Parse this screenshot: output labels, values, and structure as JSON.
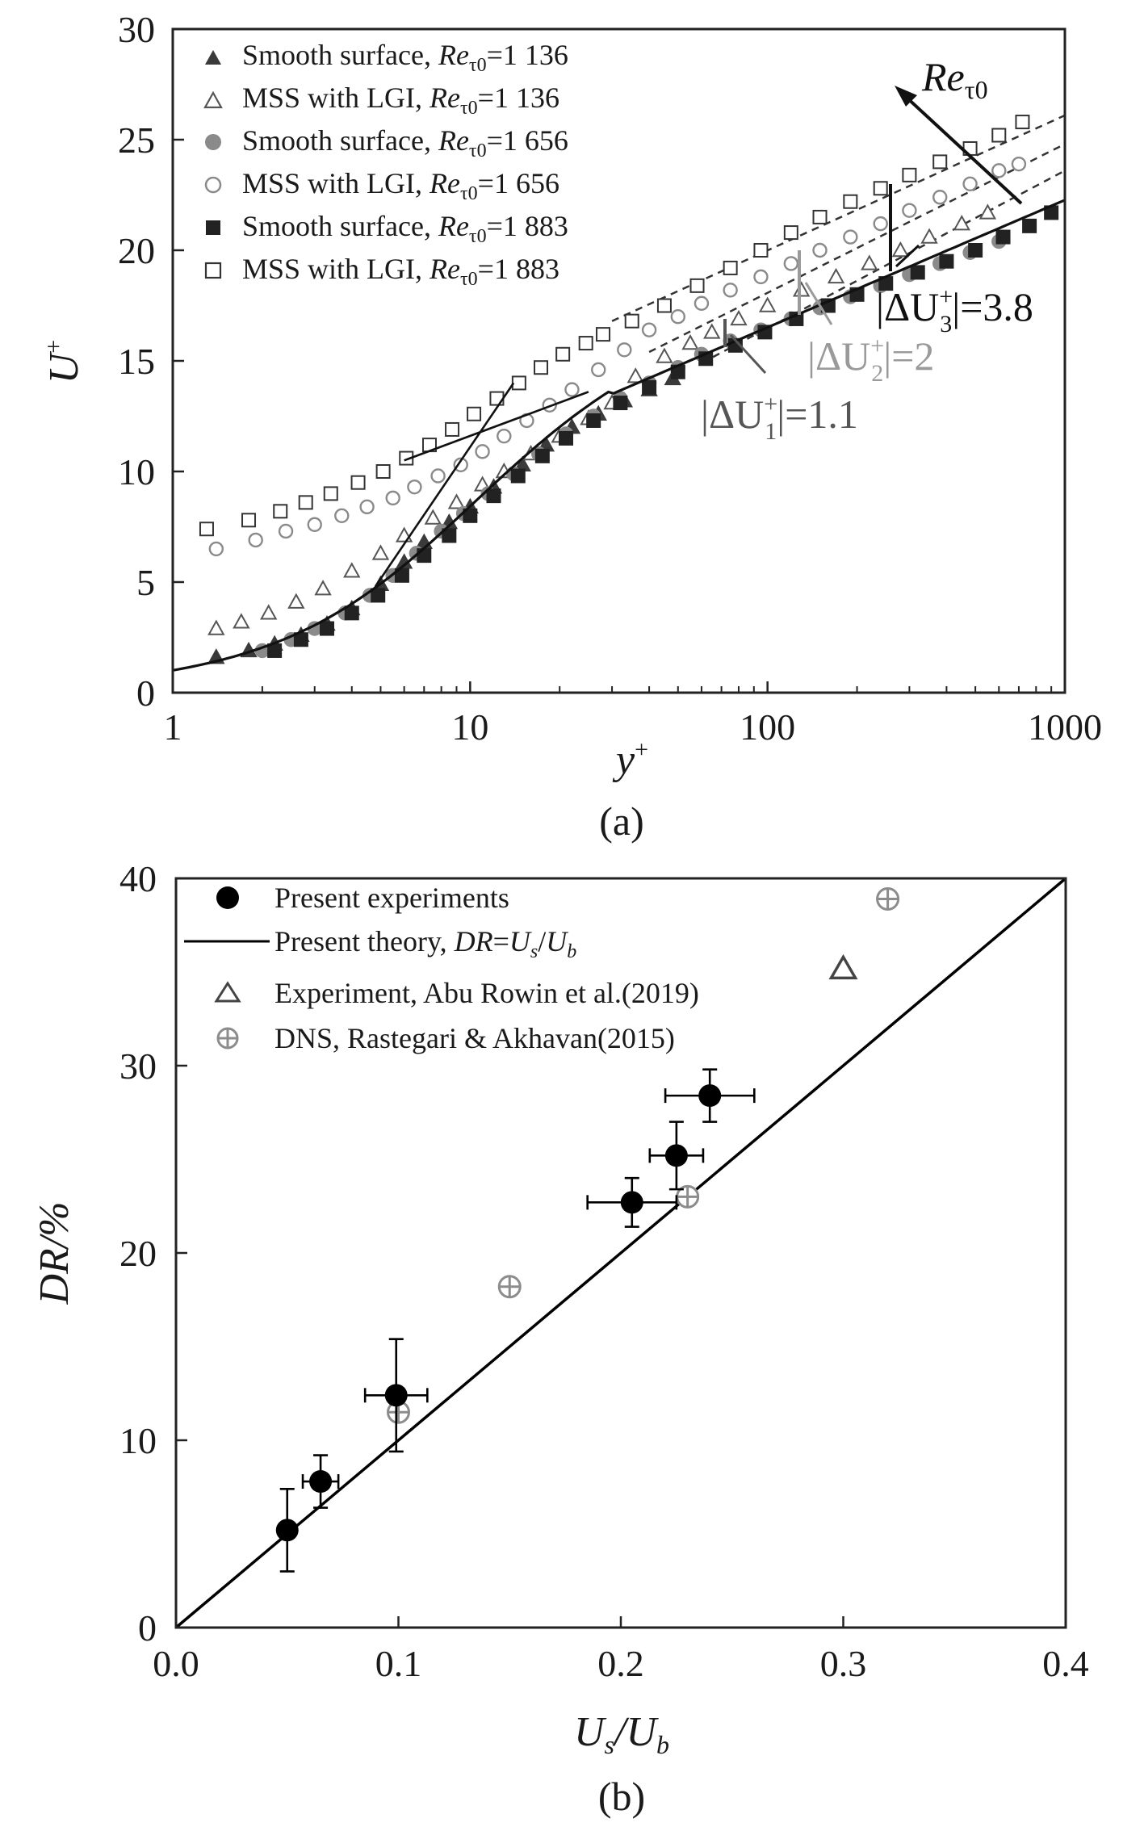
{
  "chart_data": [
    {
      "type": "scatter",
      "caption": "(a)",
      "xlabel": "y",
      "xlabel_sup": "+",
      "ylabel": "U",
      "ylabel_sup": "+",
      "xscale": "log",
      "xlim": [
        1,
        1000
      ],
      "ylim": [
        0,
        30
      ],
      "x_ticks": [
        1,
        10,
        100,
        1000
      ],
      "x_tick_labels": [
        "1",
        "10",
        "100",
        "1000"
      ],
      "y_ticks": [
        0,
        5,
        10,
        15,
        20,
        25,
        30
      ],
      "y_tick_labels": [
        "0",
        "5",
        "10",
        "15",
        "20",
        "25",
        "30"
      ],
      "legend_position": "top-left",
      "series": [
        {
          "label": "Smooth surface, ",
          "re_label": "Re",
          "re_sub": "τ0",
          "re_value": "=1 136",
          "marker": "triangle",
          "fill": "filled",
          "color": "#3a3a3a",
          "points": [
            [
              1.4,
              1.6
            ],
            [
              1.8,
              1.9
            ],
            [
              2.2,
              2.2
            ],
            [
              2.7,
              2.6
            ],
            [
              3.3,
              3.1
            ],
            [
              4,
              3.8
            ],
            [
              5,
              4.9
            ],
            [
              6,
              5.9
            ],
            [
              7,
              6.8
            ],
            [
              8.5,
              7.7
            ],
            [
              10,
              8.4
            ],
            [
              12,
              9.3
            ],
            [
              15,
              10.3
            ],
            [
              18,
              11.2
            ],
            [
              22,
              12
            ],
            [
              27,
              12.6
            ],
            [
              33,
              13.2
            ],
            [
              40,
              13.7
            ],
            [
              48,
              14.2
            ]
          ]
        },
        {
          "label": "MSS with LGI, ",
          "re_label": "Re",
          "re_sub": "τ0",
          "re_value": "=1 136",
          "marker": "triangle",
          "fill": "open",
          "color": "#555555",
          "points": [
            [
              1.4,
              2.9
            ],
            [
              1.7,
              3.2
            ],
            [
              2.1,
              3.6
            ],
            [
              2.6,
              4.1
            ],
            [
              3.2,
              4.7
            ],
            [
              4,
              5.5
            ],
            [
              5,
              6.3
            ],
            [
              6,
              7.1
            ],
            [
              7.5,
              7.9
            ],
            [
              9,
              8.6
            ],
            [
              11,
              9.4
            ],
            [
              13,
              10
            ],
            [
              16,
              10.8
            ],
            [
              20,
              11.6
            ],
            [
              25,
              12.4
            ],
            [
              30,
              13.1
            ],
            [
              36,
              14.3
            ],
            [
              45,
              15.2
            ],
            [
              55,
              15.8
            ],
            [
              65,
              16.3
            ],
            [
              80,
              16.9
            ],
            [
              100,
              17.5
            ],
            [
              130,
              18.2
            ],
            [
              170,
              18.8
            ],
            [
              220,
              19.4
            ],
            [
              280,
              20
            ],
            [
              350,
              20.6
            ],
            [
              450,
              21.2
            ],
            [
              550,
              21.7
            ]
          ]
        },
        {
          "label": "Smooth surface, ",
          "re_label": "Re",
          "re_sub": "τ0",
          "re_value": "=1 656",
          "marker": "circle",
          "fill": "filled",
          "color": "#8a8a8a",
          "points": [
            [
              2,
              1.9
            ],
            [
              2.5,
              2.4
            ],
            [
              3,
              2.9
            ],
            [
              3.8,
              3.6
            ],
            [
              4.6,
              4.4
            ],
            [
              5.5,
              5.3
            ],
            [
              6.6,
              6.3
            ],
            [
              8,
              7.3
            ],
            [
              9.5,
              8.1
            ],
            [
              11.5,
              9
            ],
            [
              14,
              9.9
            ],
            [
              17,
              10.8
            ],
            [
              21,
              11.7
            ],
            [
              26,
              12.5
            ],
            [
              32,
              13.3
            ],
            [
              40,
              14
            ],
            [
              50,
              14.7
            ],
            [
              60,
              15.3
            ],
            [
              75,
              15.9
            ],
            [
              95,
              16.4
            ],
            [
              120,
              16.9
            ],
            [
              150,
              17.4
            ],
            [
              190,
              17.9
            ],
            [
              240,
              18.4
            ],
            [
              300,
              18.9
            ],
            [
              380,
              19.4
            ],
            [
              480,
              19.9
            ],
            [
              600,
              20.4
            ]
          ]
        },
        {
          "label": "MSS with LGI, ",
          "re_label": "Re",
          "re_sub": "τ0",
          "re_value": "=1 656",
          "marker": "circle",
          "fill": "open",
          "color": "#8a8a8a",
          "points": [
            [
              1.4,
              6.5
            ],
            [
              1.9,
              6.9
            ],
            [
              2.4,
              7.3
            ],
            [
              3,
              7.6
            ],
            [
              3.7,
              8
            ],
            [
              4.5,
              8.4
            ],
            [
              5.5,
              8.8
            ],
            [
              6.5,
              9.3
            ],
            [
              7.8,
              9.8
            ],
            [
              9.3,
              10.3
            ],
            [
              11,
              10.9
            ],
            [
              13,
              11.6
            ],
            [
              15.5,
              12.3
            ],
            [
              18.5,
              13
            ],
            [
              22,
              13.7
            ],
            [
              27,
              14.6
            ],
            [
              33,
              15.5
            ],
            [
              40,
              16.4
            ],
            [
              50,
              17
            ],
            [
              60,
              17.6
            ],
            [
              75,
              18.2
            ],
            [
              95,
              18.8
            ],
            [
              120,
              19.4
            ],
            [
              150,
              20
            ],
            [
              190,
              20.6
            ],
            [
              240,
              21.2
            ],
            [
              300,
              21.8
            ],
            [
              380,
              22.4
            ],
            [
              480,
              23
            ],
            [
              600,
              23.6
            ],
            [
              700,
              23.9
            ]
          ]
        },
        {
          "label": "Smooth surface, ",
          "re_label": "Re",
          "re_sub": "τ0",
          "re_value": "=1 883",
          "marker": "square",
          "fill": "filled",
          "color": "#222222",
          "points": [
            [
              2.2,
              1.9
            ],
            [
              2.7,
              2.4
            ],
            [
              3.3,
              2.9
            ],
            [
              4,
              3.6
            ],
            [
              4.9,
              4.4
            ],
            [
              5.9,
              5.3
            ],
            [
              7,
              6.2
            ],
            [
              8.5,
              7.1
            ],
            [
              10,
              8
            ],
            [
              12,
              8.9
            ],
            [
              14.5,
              9.8
            ],
            [
              17.5,
              10.7
            ],
            [
              21,
              11.5
            ],
            [
              26,
              12.3
            ],
            [
              32,
              13.1
            ],
            [
              40,
              13.8
            ],
            [
              50,
              14.5
            ],
            [
              62,
              15.1
            ],
            [
              78,
              15.7
            ],
            [
              98,
              16.3
            ],
            [
              125,
              16.9
            ],
            [
              160,
              17.5
            ],
            [
              200,
              18
            ],
            [
              250,
              18.5
            ],
            [
              320,
              19
            ],
            [
              400,
              19.5
            ],
            [
              500,
              20
            ],
            [
              620,
              20.6
            ],
            [
              760,
              21.1
            ],
            [
              900,
              21.7
            ]
          ]
        },
        {
          "label": "MSS with LGI, ",
          "re_label": "Re",
          "re_sub": "τ0",
          "re_value": "=1 883",
          "marker": "square",
          "fill": "open",
          "color": "#333333",
          "points": [
            [
              1.3,
              7.4
            ],
            [
              1.8,
              7.8
            ],
            [
              2.3,
              8.2
            ],
            [
              2.8,
              8.6
            ],
            [
              3.4,
              9
            ],
            [
              4.2,
              9.5
            ],
            [
              5.1,
              10
            ],
            [
              6.1,
              10.6
            ],
            [
              7.3,
              11.2
            ],
            [
              8.7,
              11.9
            ],
            [
              10.3,
              12.6
            ],
            [
              12.3,
              13.3
            ],
            [
              14.6,
              14
            ],
            [
              17.3,
              14.7
            ],
            [
              20.5,
              15.3
            ],
            [
              24.5,
              15.8
            ],
            [
              28,
              16.2
            ],
            [
              35,
              16.8
            ],
            [
              45,
              17.5
            ],
            [
              58,
              18.4
            ],
            [
              75,
              19.2
            ],
            [
              95,
              20
            ],
            [
              120,
              20.8
            ],
            [
              150,
              21.5
            ],
            [
              190,
              22.2
            ],
            [
              240,
              22.8
            ],
            [
              300,
              23.4
            ],
            [
              380,
              24
            ],
            [
              480,
              24.6
            ],
            [
              600,
              25.2
            ],
            [
              720,
              25.8
            ]
          ]
        }
      ],
      "theory_curve_color": "#111111",
      "dashed_line_color": "#333333",
      "annotations": [
        {
          "main": "Re",
          "sub": "τ0",
          "color": "#111111"
        },
        {
          "pre": "|ΔU",
          "sup": "+",
          "sub": "1",
          "post": "|=1.1",
          "color": "#555555"
        },
        {
          "pre": "|ΔU",
          "sup": "+",
          "sub": "2",
          "post": "|=2",
          "color": "#9a9a9a"
        },
        {
          "pre": "|ΔU",
          "sup": "+",
          "sub": "3",
          "post": "|=3.8",
          "color": "#111111"
        }
      ]
    },
    {
      "type": "scatter",
      "caption": "(b)",
      "xlabel_parts": [
        "U",
        "s",
        "/U",
        "b"
      ],
      "ylabel": "DR/%",
      "xlim": [
        0,
        0.4
      ],
      "ylim": [
        0,
        40
      ],
      "x_ticks": [
        0,
        0.1,
        0.2,
        0.3,
        0.4
      ],
      "x_tick_labels": [
        "0.0",
        "0.1",
        "0.2",
        "0.3",
        "0.4"
      ],
      "y_ticks": [
        0,
        10,
        20,
        30,
        40
      ],
      "y_tick_labels": [
        "0",
        "10",
        "20",
        "30",
        "40"
      ],
      "legend_position": "top-left",
      "series": [
        {
          "label": "Present experiments",
          "marker": "filled-circle",
          "color": "#000000",
          "points": [
            {
              "x": 0.05,
              "y": 5.2,
              "xerr": 0,
              "yerr": 2.2
            },
            {
              "x": 0.065,
              "y": 7.8,
              "xerr": 0.008,
              "yerr": 1.4
            },
            {
              "x": 0.099,
              "y": 12.4,
              "xerr": 0.014,
              "yerr": 3.0
            },
            {
              "x": 0.205,
              "y": 22.7,
              "xerr": 0.02,
              "yerr": 1.3
            },
            {
              "x": 0.225,
              "y": 25.2,
              "xerr": 0.012,
              "yerr": 1.8
            },
            {
              "x": 0.24,
              "y": 28.4,
              "xerr": 0.02,
              "yerr": 1.4
            }
          ]
        },
        {
          "label_parts": [
            "Present theory, ",
            "DR",
            "=",
            "U",
            "s",
            "/",
            "U",
            "b"
          ],
          "marker": "line",
          "color": "#000000",
          "line": [
            [
              0,
              0
            ],
            [
              0.4,
              40
            ]
          ]
        },
        {
          "label": "Experiment, Abu Rowin et al.(2019)",
          "marker": "open-triangle",
          "color": "#444444",
          "points": [
            {
              "x": 0.3,
              "y": 35.2
            }
          ]
        },
        {
          "label": "DNS, Rastegari & Akhavan(2015)",
          "marker": "circle-plus",
          "color": "#8c8c8c",
          "points": [
            {
              "x": 0.1,
              "y": 11.5
            },
            {
              "x": 0.15,
              "y": 18.2
            },
            {
              "x": 0.23,
              "y": 23.0
            },
            {
              "x": 0.32,
              "y": 38.9
            }
          ]
        }
      ]
    }
  ]
}
